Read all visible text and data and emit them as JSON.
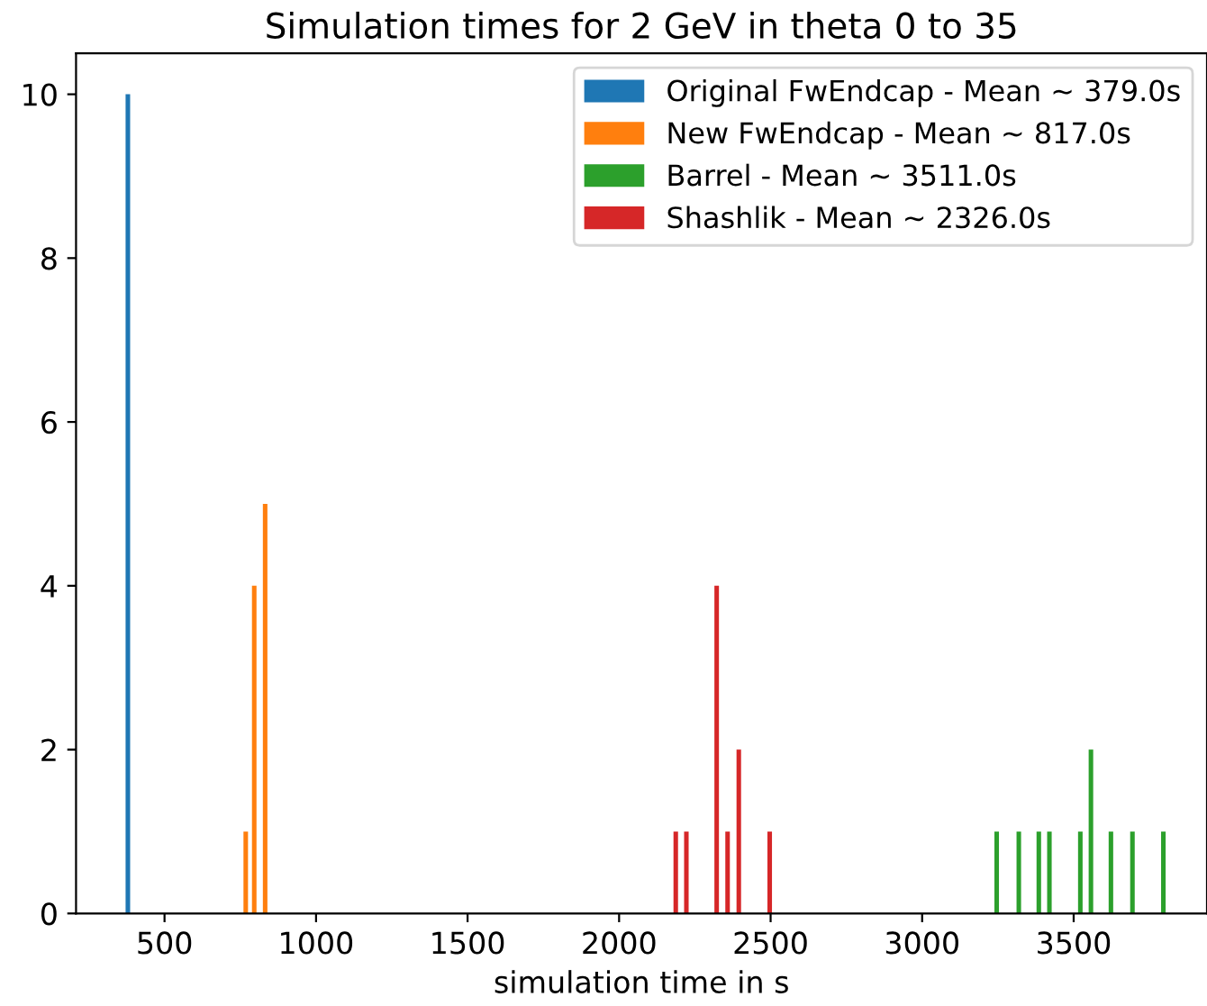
{
  "chart_data": {
    "type": "bar",
    "title": "Simulation times for 2 GeV in theta 0 to 35",
    "xlabel": "simulation time in s",
    "series": [
      {
        "name": "Original FwEndcap - Mean ~ 379.0s",
        "color": "#1f77b4",
        "x": [
          379
        ],
        "values": [
          10
        ]
      },
      {
        "name": "New FwEndcap - Mean ~ 817.0s",
        "color": "#ff7f0e",
        "x": [
          768,
          796,
          832
        ],
        "values": [
          1,
          4,
          5
        ]
      },
      {
        "name": "Barrel - Mean ~ 3511.0s",
        "color": "#2ca02c",
        "x": [
          3246,
          3319,
          3385,
          3420,
          3522,
          3557,
          3623,
          3694,
          3796
        ],
        "values": [
          1,
          1,
          1,
          1,
          1,
          2,
          1,
          1,
          1
        ]
      },
      {
        "name": "Shashlik - Mean ~ 2326.0s",
        "color": "#d62728",
        "x": [
          2187,
          2222,
          2322,
          2358,
          2395,
          2497
        ],
        "values": [
          1,
          1,
          4,
          1,
          2,
          1
        ]
      }
    ],
    "xlim": [
      208,
      3940
    ],
    "xticks": [
      500,
      1000,
      1500,
      2000,
      2500,
      3000,
      3500
    ],
    "ylim": [
      0,
      10.5
    ],
    "yticks": [
      0,
      2,
      4,
      6,
      8,
      10
    ],
    "grid": false,
    "legend": "top right"
  }
}
